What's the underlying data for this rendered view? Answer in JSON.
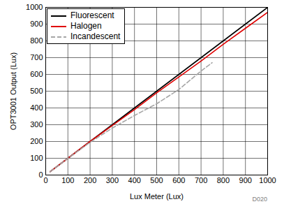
{
  "chart_data": {
    "type": "line",
    "x_label": "Lux Meter (Lux)",
    "y_label": "OPT3001 Output (Lux)",
    "annotations": [
      "D020"
    ],
    "x": [
      20,
      100,
      200,
      300,
      400,
      500,
      600,
      700,
      750,
      800,
      900,
      1000
    ],
    "series": [
      {
        "name": "Fluorescent",
        "color": "#000000",
        "line_style": "solid",
        "values": [
          20,
          100,
          200,
          300,
          400,
          500,
          600,
          700,
          750,
          800,
          900,
          1000
        ]
      },
      {
        "name": "Halogen",
        "color": "#e00000",
        "line_style": "solid",
        "values": [
          20,
          100,
          200,
          295,
          390,
          490,
          585,
          680,
          730,
          780,
          875,
          970
        ]
      },
      {
        "name": "Incandescent",
        "color": "#a6a6a6",
        "line_style": "dashed",
        "values": [
          20,
          100,
          195,
          280,
          355,
          425,
          510,
          620,
          670,
          null,
          null,
          null
        ]
      }
    ],
    "xlim": [
      0,
      1000
    ],
    "xticks": [
      0,
      100,
      200,
      300,
      400,
      500,
      600,
      700,
      800,
      900,
      1000
    ],
    "ylim": [
      0,
      1000
    ],
    "yticks": [
      0,
      100,
      200,
      300,
      400,
      500,
      600,
      700,
      800,
      900,
      1000
    ],
    "grid": true,
    "legend": "top-left"
  }
}
